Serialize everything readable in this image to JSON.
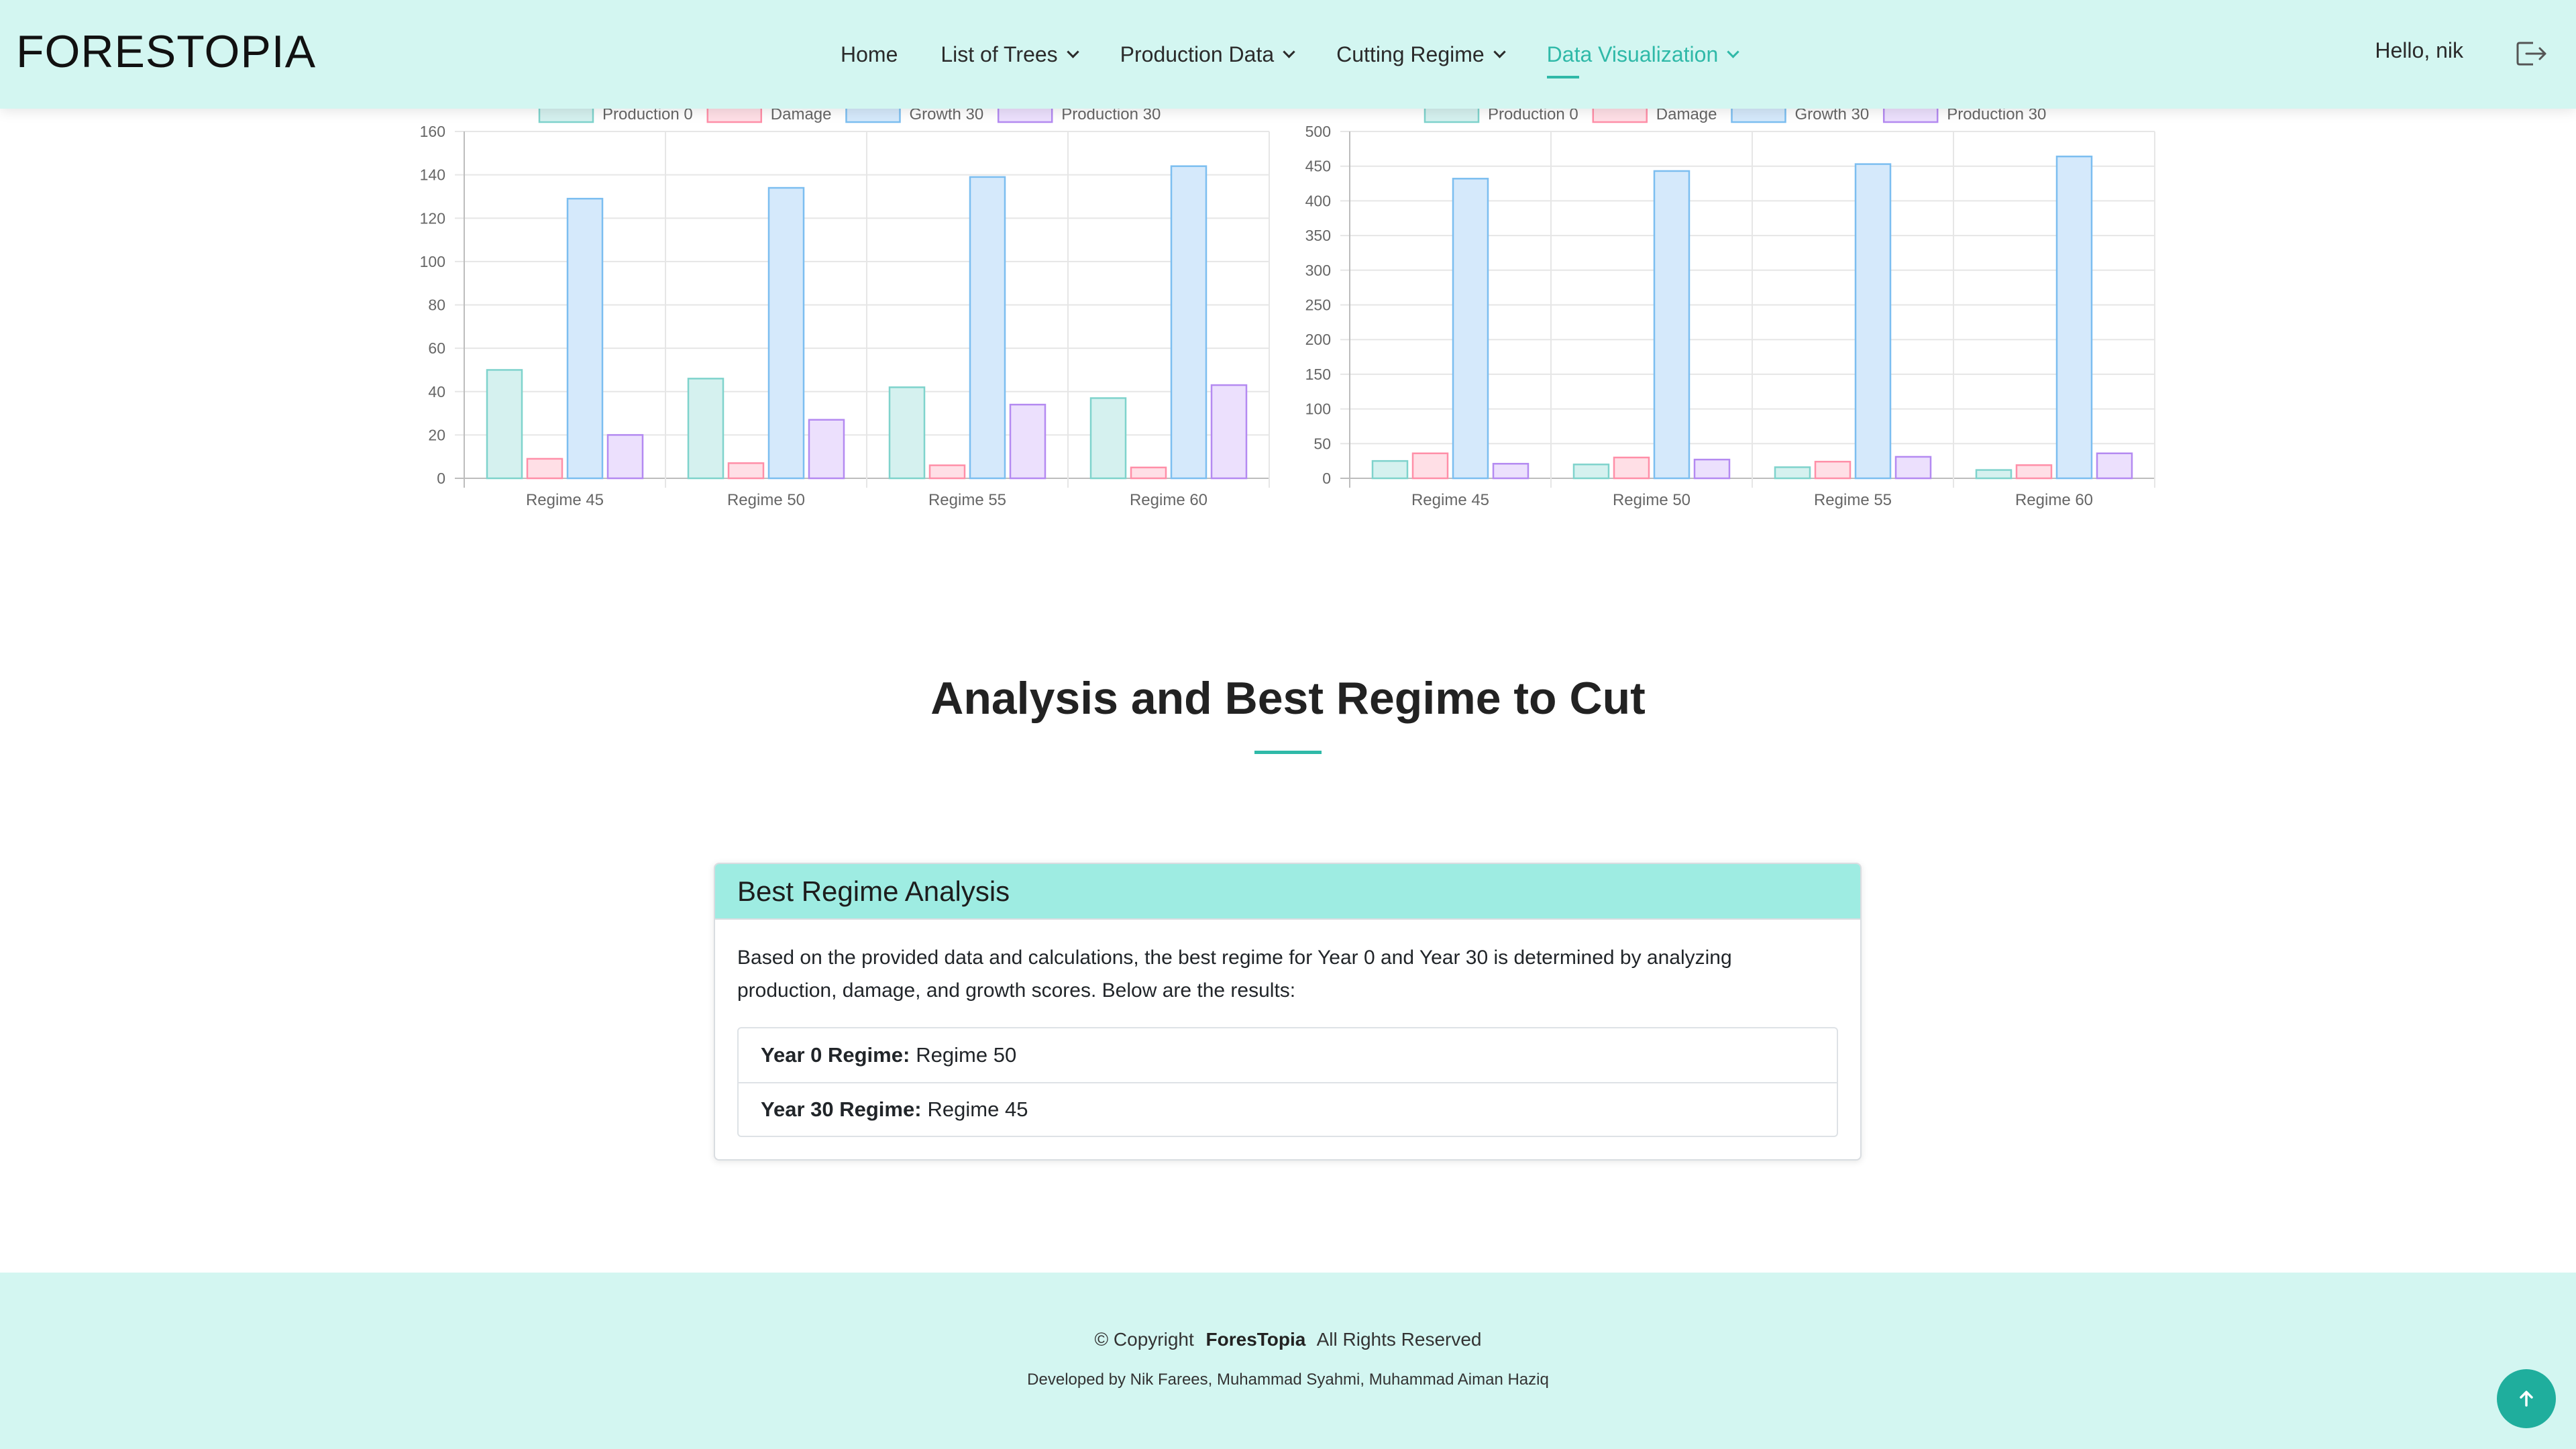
{
  "header": {
    "logo": "FORESTOPIA",
    "nav": [
      {
        "label": "Home",
        "dropdown": false,
        "active": false
      },
      {
        "label": "List of Trees",
        "dropdown": true,
        "active": false
      },
      {
        "label": "Production Data",
        "dropdown": true,
        "active": false
      },
      {
        "label": "Cutting Regime",
        "dropdown": true,
        "active": false
      },
      {
        "label": "Data Visualization",
        "dropdown": true,
        "active": true
      }
    ],
    "greeting": "Hello, nik",
    "logout_icon": "logout-icon"
  },
  "chart_data": [
    {
      "type": "bar",
      "categories": [
        "Regime 45",
        "Regime 50",
        "Regime 55",
        "Regime 60"
      ],
      "series": [
        {
          "name": "Production 0",
          "values": [
            50,
            46,
            42,
            37
          ]
        },
        {
          "name": "Damage",
          "values": [
            9,
            7,
            6,
            5
          ]
        },
        {
          "name": "Growth 30",
          "values": [
            129,
            134,
            139,
            144
          ]
        },
        {
          "name": "Production 30",
          "values": [
            20,
            27,
            34,
            43
          ]
        }
      ],
      "ylim": [
        0,
        160
      ],
      "yticks": [
        0,
        20,
        40,
        60,
        80,
        100,
        120,
        140,
        160
      ],
      "grid": true,
      "legend": "top"
    },
    {
      "type": "bar",
      "categories": [
        "Regime 45",
        "Regime 50",
        "Regime 55",
        "Regime 60"
      ],
      "series": [
        {
          "name": "Production 0",
          "values": [
            25,
            20,
            16,
            12
          ]
        },
        {
          "name": "Damage",
          "values": [
            36,
            30,
            24,
            19
          ]
        },
        {
          "name": "Growth 30",
          "values": [
            432,
            443,
            453,
            464
          ]
        },
        {
          "name": "Production 30",
          "values": [
            21,
            27,
            31,
            36
          ]
        }
      ],
      "ylim": [
        0,
        500
      ],
      "yticks": [
        0,
        50,
        100,
        150,
        200,
        250,
        300,
        350,
        400,
        450,
        500
      ],
      "grid": true,
      "legend": "top"
    }
  ],
  "series_colors": [
    {
      "fill": "#d5f1ef",
      "stroke": "#7fd3cc"
    },
    {
      "fill": "#ffdfe6",
      "stroke": "#ff8fa8"
    },
    {
      "fill": "#d5e9fb",
      "stroke": "#7cbef0"
    },
    {
      "fill": "#ece0fd",
      "stroke": "#b48af1"
    }
  ],
  "analysis": {
    "title": "Analysis and Best Regime to Cut",
    "card_title": "Best Regime Analysis",
    "text": "Based on the provided data and calculations, the best regime for Year 0 and Year 30 is determined by analyzing production, damage, and growth scores. Below are the results:",
    "results": [
      {
        "label": "Year 0 Regime:",
        "value": "Regime 50"
      },
      {
        "label": "Year 30 Regime:",
        "value": "Regime 45"
      }
    ]
  },
  "footer": {
    "copyright_prefix": "© Copyright",
    "brand": "ForesTopia",
    "rights": "All Rights Reserved",
    "credits": "Developed by Nik Farees, Muhammad Syahmi, Muhammad Aiman Haziq",
    "back_to_top_icon": "arrow-up-icon"
  }
}
